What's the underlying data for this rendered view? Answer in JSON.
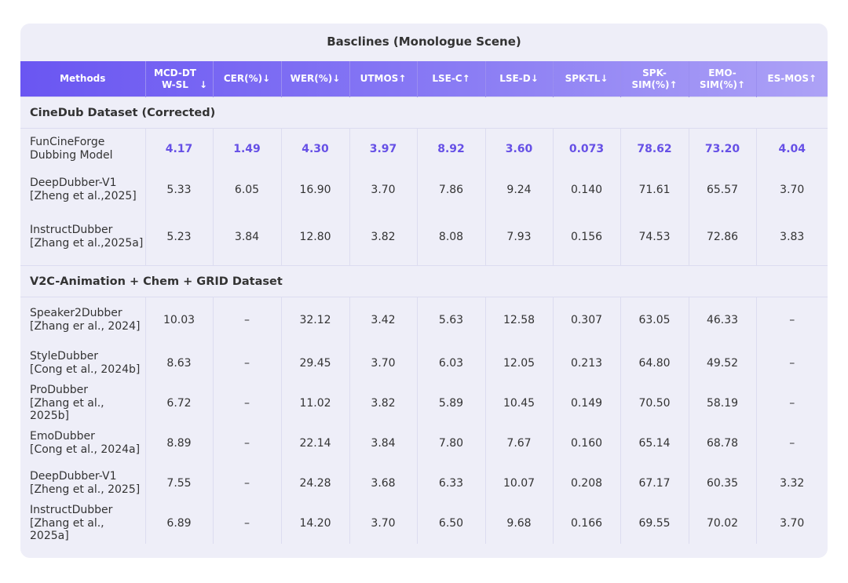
{
  "title": "Basclines (Monologue Scene)",
  "columns": [
    {
      "label": "Methods",
      "arrow": ""
    },
    {
      "label": "MCD-DTW-SL",
      "arrow": "↓"
    },
    {
      "label": "CER(%)",
      "arrow": "↓"
    },
    {
      "label": "WER(%)",
      "arrow": "↓"
    },
    {
      "label": "UTMOS",
      "arrow": "↑"
    },
    {
      "label": "LSE-C",
      "arrow": "↑"
    },
    {
      "label": "LSE-D",
      "arrow": "↓"
    },
    {
      "label": "SPK-TL",
      "arrow": "↓"
    },
    {
      "label": "SPK-SIM(%)",
      "arrow": "↑"
    },
    {
      "label": "EMO-SIM(%)",
      "arrow": "↑"
    },
    {
      "label": "ES-MOS",
      "arrow": "↑"
    }
  ],
  "sections": [
    {
      "name": "CineDub Dataset (Corrected)",
      "rows": [
        {
          "method": [
            "FunCineForge",
            "Dubbing Model"
          ],
          "values": [
            "4.17",
            "1.49",
            "4.30",
            "3.97",
            "8.92",
            "3.60",
            "0.073",
            "78.62",
            "73.20",
            "4.04"
          ],
          "best": true
        },
        {
          "method": [
            "DeepDubber-V1",
            "[Zheng et al.,2025]"
          ],
          "values": [
            "5.33",
            "6.05",
            "16.90",
            "3.70",
            "7.86",
            "9.24",
            "0.140",
            "71.61",
            "65.57",
            "3.70"
          ]
        },
        {
          "method": [
            "InstructDubber",
            "[Zhang et al.,2025a]"
          ],
          "values": [
            "5.23",
            "3.84",
            "12.80",
            "3.82",
            "8.08",
            "7.93",
            "0.156",
            "74.53",
            "72.86",
            "3.83"
          ]
        }
      ]
    },
    {
      "name": "V2C-Animation + Chem + GRID Dataset",
      "rows": [
        {
          "method": [
            "Speaker2Dubber",
            "[Zhang er al., 2024]"
          ],
          "values": [
            "10.03",
            "–",
            "32.12",
            "3.42",
            "5.63",
            "12.58",
            "0.307",
            "63.05",
            "46.33",
            "–"
          ]
        },
        {
          "method": [
            "StyleDubber",
            "[Cong et al., 2024b]"
          ],
          "values": [
            "8.63",
            "–",
            "29.45",
            "3.70",
            "6.03",
            "12.05",
            "0.213",
            "64.80",
            "49.52",
            "–"
          ]
        },
        {
          "method": [
            "ProDubber",
            "[Zhang et al., 2025b]"
          ],
          "values": [
            "6.72",
            "–",
            "11.02",
            "3.82",
            "5.89",
            "10.45",
            "0.149",
            "70.50",
            "58.19",
            "–"
          ]
        },
        {
          "method": [
            "EmoDubber",
            "[Cong et al., 2024a]"
          ],
          "values": [
            "8.89",
            "–",
            "22.14",
            "3.84",
            "7.80",
            "7.67",
            "0.160",
            "65.14",
            "68.78",
            "–"
          ]
        },
        {
          "method": [
            "DeepDubber-V1",
            "[Zheng et al., 2025]"
          ],
          "values": [
            "7.55",
            "–",
            "24.28",
            "3.68",
            "6.33",
            "10.07",
            "0.208",
            "67.17",
            "60.35",
            "3.32"
          ]
        },
        {
          "method": [
            "InstructDubber",
            "[Zhang et al., 2025a]"
          ],
          "values": [
            "6.89",
            "–",
            "14.20",
            "3.70",
            "6.50",
            "9.68",
            "0.166",
            "69.55",
            "70.02",
            "3.70"
          ]
        }
      ]
    }
  ]
}
